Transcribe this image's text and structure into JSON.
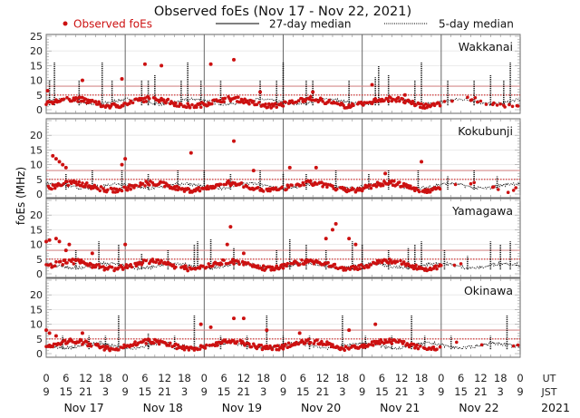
{
  "chart_data": {
    "type": "scatter",
    "title": "Observed foEs (Nov 17 - Nov 22, 2021)",
    "ylabel": "foEs (MHz)",
    "ylim": [
      0,
      25
    ],
    "yticks": [
      0,
      5,
      10,
      15,
      20,
      25
    ],
    "legend": {
      "placement": "top",
      "entries": [
        {
          "label": "Observed foEs",
          "style": "dot",
          "color": "#cc1111"
        },
        {
          "label": "27-day median",
          "style": "solid-line",
          "color": "#000000"
        },
        {
          "label": "5-day median",
          "style": "dotted-line",
          "color": "#000000"
        }
      ]
    },
    "x_ut_ticks": [
      "0",
      "6",
      "12",
      "18",
      "0",
      "6",
      "12",
      "18",
      "0",
      "6",
      "12",
      "18",
      "0",
      "6",
      "12",
      "18",
      "0",
      "6",
      "12",
      "18",
      "0",
      "6",
      "12",
      "18",
      "0"
    ],
    "x_jst_ticks": [
      "9",
      "15",
      "21",
      "3",
      "9",
      "15",
      "21",
      "3",
      "9",
      "15",
      "21",
      "3",
      "9",
      "15",
      "21",
      "3",
      "9",
      "15",
      "21",
      "3",
      "9",
      "15",
      "21",
      "3",
      "9"
    ],
    "x_row_labels": {
      "ut": "UT",
      "jst": "JST"
    },
    "days": [
      "Nov 17",
      "Nov 18",
      "Nov 19",
      "Nov 20",
      "Nov 21",
      "Nov 22"
    ],
    "year": "2021",
    "reference_lines": {
      "solid_red": 8,
      "dotted_red": 5
    },
    "panels": [
      {
        "station": "Wakkanai",
        "obs_level": 2.5,
        "obs_days": [
          1,
          1,
          1,
          1,
          1,
          0.3
        ],
        "spikes": [
          [
            1,
            10
          ],
          [
            2.5,
            16
          ],
          [
            10,
            10
          ],
          [
            17,
            16
          ],
          [
            20,
            10
          ],
          [
            29,
            10
          ],
          [
            31,
            10
          ],
          [
            33,
            12
          ],
          [
            41,
            10
          ],
          [
            43,
            16
          ],
          [
            47,
            10
          ],
          [
            53,
            10
          ],
          [
            65,
            10
          ],
          [
            70,
            10
          ],
          [
            72,
            16
          ],
          [
            79,
            10
          ],
          [
            81,
            10
          ],
          [
            92,
            10
          ],
          [
            100,
            11
          ],
          [
            101,
            15
          ],
          [
            104,
            12
          ],
          [
            112,
            10
          ],
          [
            114,
            16
          ],
          [
            122,
            10
          ],
          [
            130,
            10
          ],
          [
            135,
            12
          ],
          [
            139,
            10
          ],
          [
            141,
            16
          ]
        ],
        "outliers": [
          [
            0.4,
            6.5
          ],
          [
            11,
            10
          ],
          [
            23,
            10.5
          ],
          [
            30,
            15.5
          ],
          [
            35,
            15
          ],
          [
            50,
            15.5
          ],
          [
            57,
            17
          ],
          [
            65,
            6
          ],
          [
            81,
            6
          ],
          [
            99,
            8.5
          ],
          [
            109,
            5
          ]
        ]
      },
      {
        "station": "Kokubunji",
        "obs_level": 2.5,
        "obs_days": [
          1,
          1,
          1,
          1,
          1,
          0.2
        ],
        "spikes": [
          [
            6,
            7
          ],
          [
            14,
            8
          ],
          [
            23,
            8
          ],
          [
            31,
            7
          ],
          [
            40,
            8
          ],
          [
            48,
            8
          ],
          [
            56,
            7
          ],
          [
            65,
            8
          ],
          [
            72,
            7
          ],
          [
            79,
            7
          ],
          [
            88,
            8
          ],
          [
            98,
            7
          ],
          [
            104,
            8
          ],
          [
            113,
            8
          ],
          [
            122,
            6
          ],
          [
            130,
            8
          ],
          [
            137,
            6
          ]
        ],
        "outliers": [
          [
            2,
            13
          ],
          [
            3,
            12
          ],
          [
            4,
            11
          ],
          [
            5,
            10
          ],
          [
            6,
            9
          ],
          [
            23,
            10
          ],
          [
            24,
            12
          ],
          [
            44,
            14
          ],
          [
            57,
            18
          ],
          [
            63,
            8
          ],
          [
            74,
            9
          ],
          [
            82,
            9
          ],
          [
            103,
            7
          ],
          [
            114,
            11
          ]
        ]
      },
      {
        "station": "Yamagawa",
        "obs_level": 3,
        "obs_days": [
          1,
          1,
          1,
          1,
          1,
          0.1
        ],
        "spikes": [
          [
            9,
            8
          ],
          [
            16,
            11
          ],
          [
            22,
            10
          ],
          [
            29,
            7
          ],
          [
            37,
            8
          ],
          [
            45,
            10
          ],
          [
            46,
            11
          ],
          [
            50,
            12
          ],
          [
            57,
            9
          ],
          [
            70,
            8
          ],
          [
            74,
            12
          ],
          [
            79,
            10
          ],
          [
            85,
            8
          ],
          [
            93,
            11
          ],
          [
            96,
            10
          ],
          [
            104,
            8
          ],
          [
            110,
            9
          ],
          [
            112,
            10
          ],
          [
            114,
            11
          ],
          [
            121,
            8
          ],
          [
            128,
            6
          ],
          [
            135,
            11
          ],
          [
            138,
            10
          ],
          [
            141,
            11
          ]
        ],
        "outliers": [
          [
            0,
            11
          ],
          [
            1,
            11.5
          ],
          [
            3,
            12
          ],
          [
            4,
            11
          ],
          [
            6,
            8
          ],
          [
            7,
            10
          ],
          [
            14,
            7
          ],
          [
            24,
            10
          ],
          [
            55,
            10
          ],
          [
            56,
            16
          ],
          [
            60,
            7
          ],
          [
            85,
            12
          ],
          [
            87,
            15
          ],
          [
            88,
            17
          ],
          [
            92,
            12
          ],
          [
            94,
            10
          ]
        ]
      },
      {
        "station": "Okinawa",
        "obs_level": 3,
        "obs_days": [
          1,
          1,
          1,
          1,
          1,
          0.15
        ],
        "spikes": [
          [
            5,
            6
          ],
          [
            13,
            6
          ],
          [
            18,
            6
          ],
          [
            22,
            13
          ],
          [
            31,
            7
          ],
          [
            39,
            6
          ],
          [
            45,
            13
          ],
          [
            53,
            6
          ],
          [
            61,
            6
          ],
          [
            67,
            13
          ],
          [
            72,
            6
          ],
          [
            80,
            6
          ],
          [
            90,
            13
          ],
          [
            97,
            6
          ],
          [
            105,
            6
          ],
          [
            111,
            13
          ],
          [
            115,
            6
          ],
          [
            123,
            6
          ],
          [
            135,
            6
          ],
          [
            140,
            13
          ]
        ],
        "outliers": [
          [
            0,
            8
          ],
          [
            1,
            7
          ],
          [
            3,
            6
          ],
          [
            11,
            7
          ],
          [
            47,
            10
          ],
          [
            50,
            9
          ],
          [
            57,
            12
          ],
          [
            60,
            12
          ],
          [
            67,
            8
          ],
          [
            77,
            7
          ],
          [
            92,
            8
          ],
          [
            100,
            10
          ]
        ]
      }
    ]
  }
}
